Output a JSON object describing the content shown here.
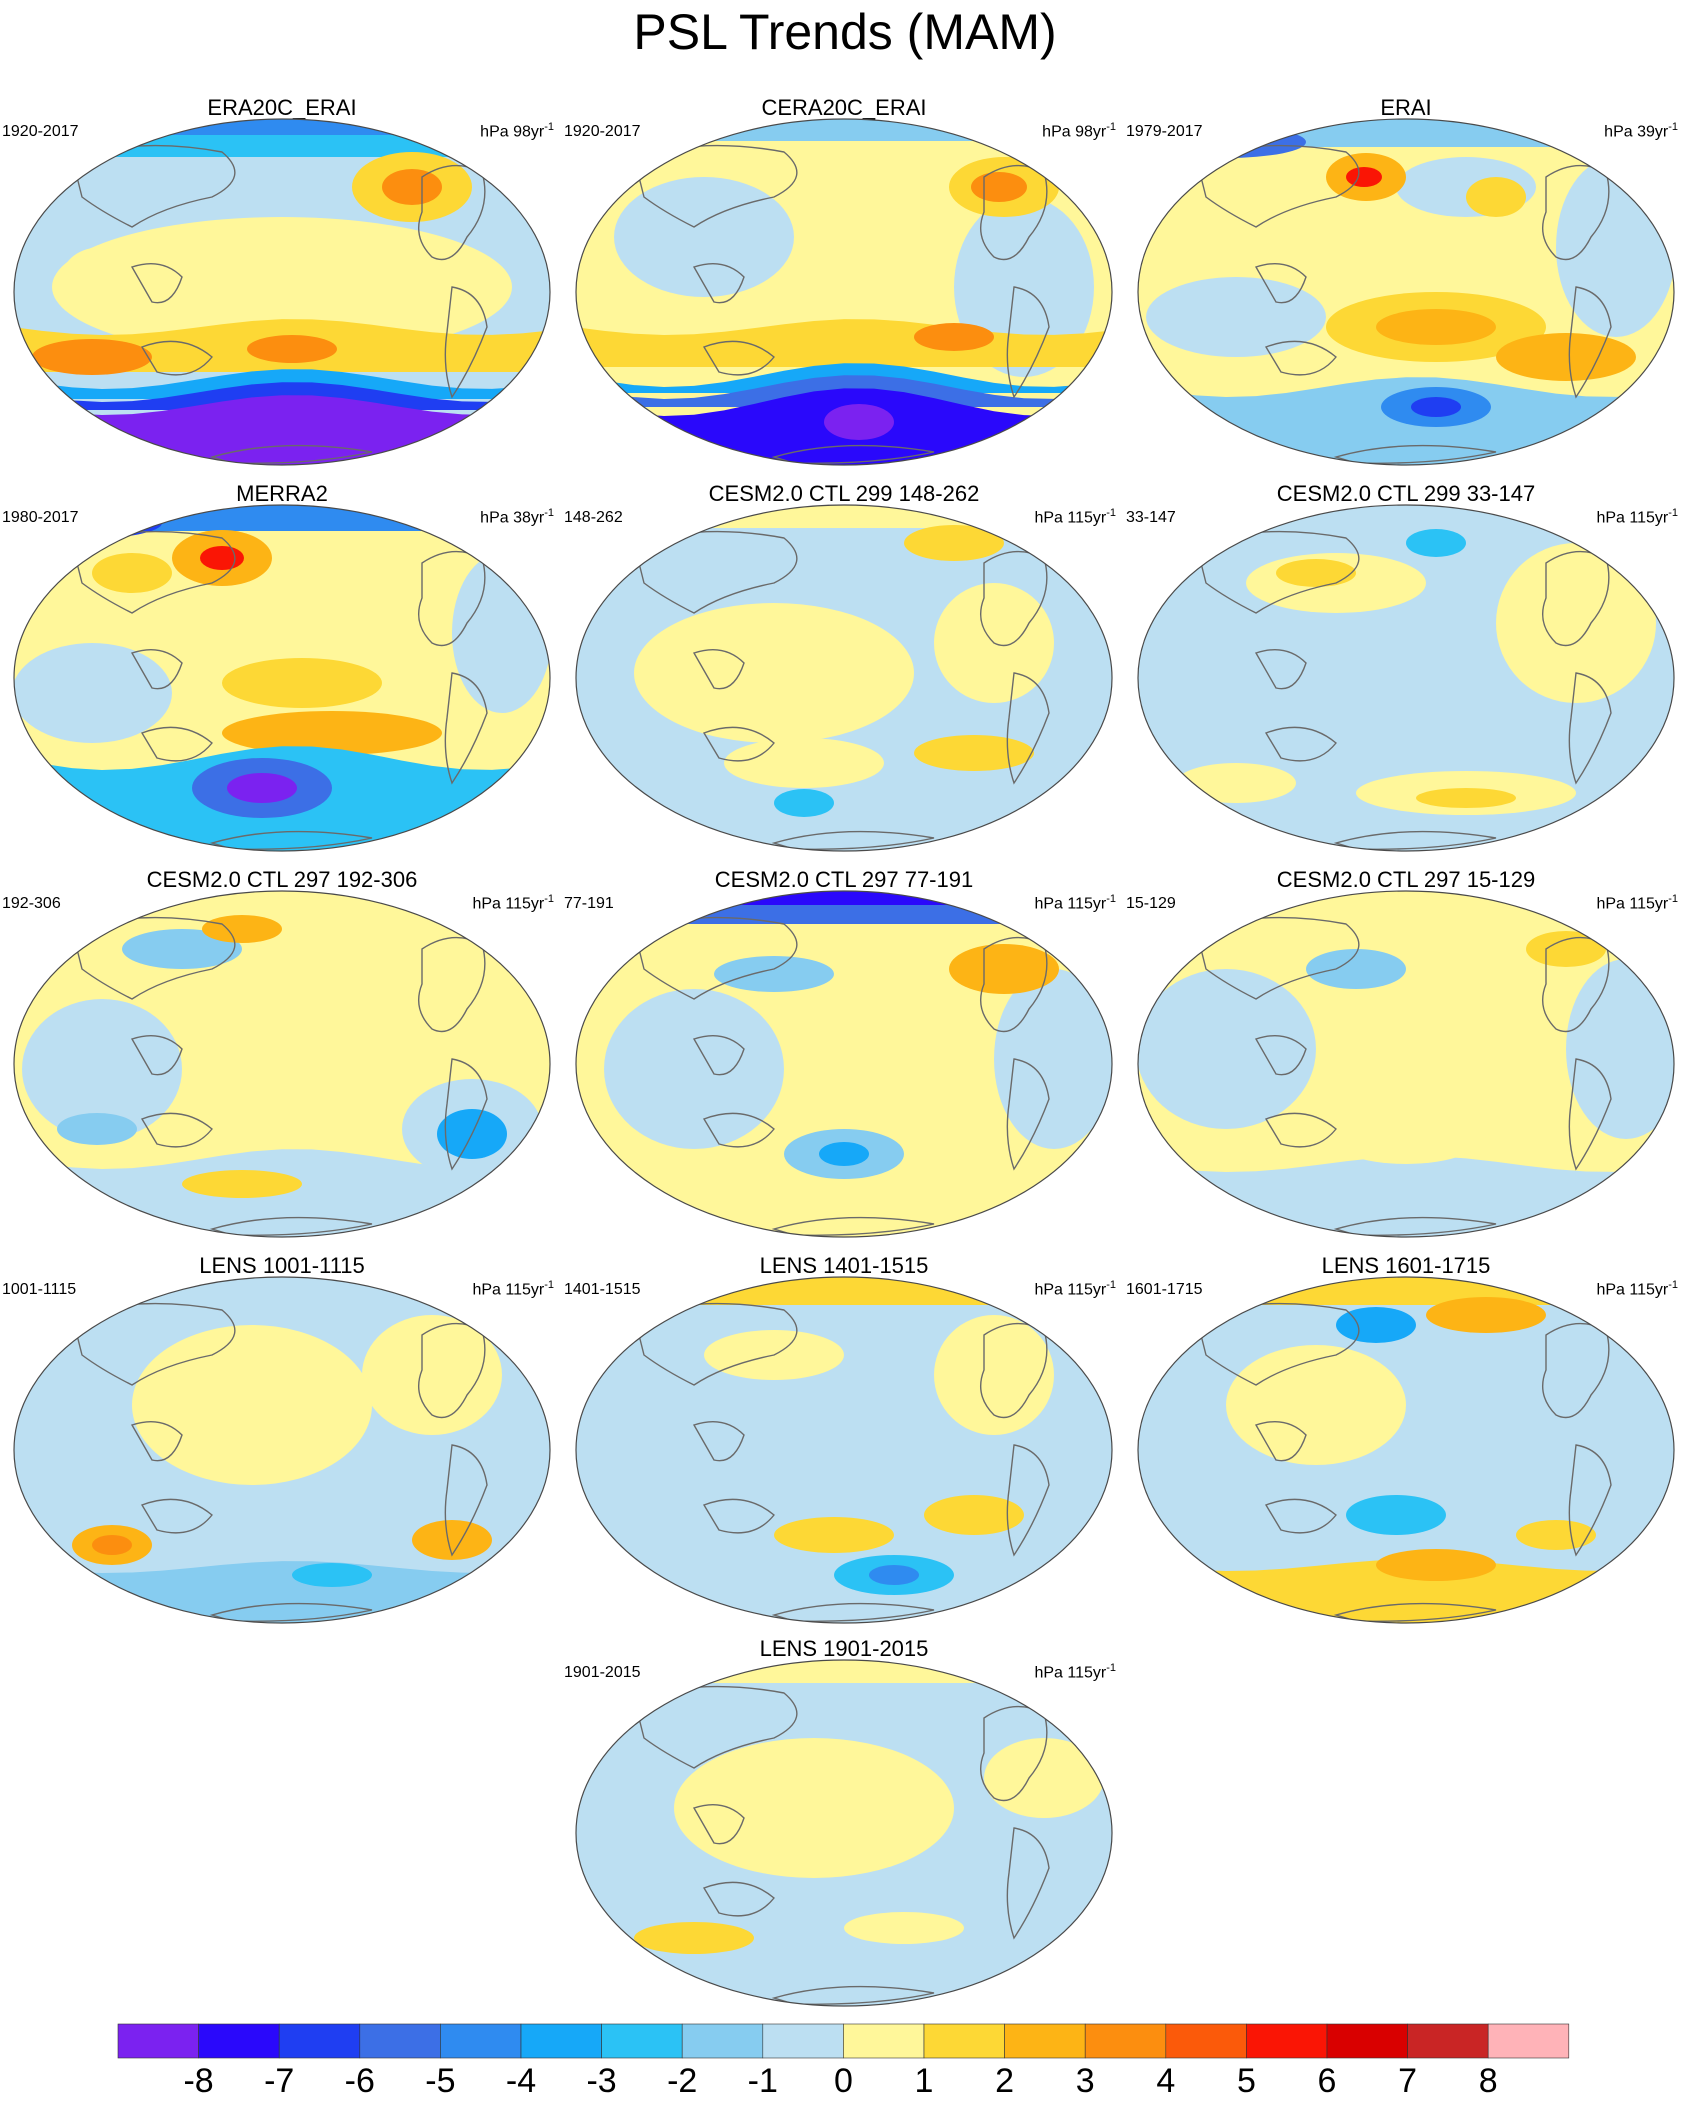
{
  "title": "PSL Trends (MAM)",
  "colors": {
    "land_outline": "#6a6a6a",
    "map_border": "#4a4a4a",
    "levels": [
      "#7b22f0",
      "#2a08fb",
      "#1f3ef2",
      "#3c6fe6",
      "#2f8bf0",
      "#16a8f8",
      "#2bc2f5",
      "#86ccf0",
      "#bcdff2",
      "#fff79a",
      "#fdd835",
      "#fdb415",
      "#fc8e0f",
      "#fb5a0a",
      "#fa1505",
      "#d90000",
      "#c92525",
      "#ffb3b8"
    ]
  },
  "panels": [
    {
      "title": "ERA20C_ERAI",
      "left_label": "1920-2017",
      "unit": "hPa 98yr",
      "unit_exp": "-1",
      "style": "southern-low"
    },
    {
      "title": "CERA20C_ERAI",
      "left_label": "1920-2017",
      "unit": "hPa 98yr",
      "unit_exp": "-1",
      "style": "southern-low-2"
    },
    {
      "title": "ERAI",
      "left_label": "1979-2017",
      "unit": "hPa 39yr",
      "unit_exp": "-1",
      "style": "erai"
    },
    {
      "title": "MERRA2",
      "left_label": "1980-2017",
      "unit": "hPa 38yr",
      "unit_exp": "-1",
      "style": "merra"
    },
    {
      "title": "CESM2.0 CTL 299 148-262",
      "left_label": "148-262",
      "unit": "hPa 115yr",
      "unit_exp": "-1",
      "style": "mild-a"
    },
    {
      "title": "CESM2.0 CTL 299 33-147",
      "left_label": "33-147",
      "unit": "hPa 115yr",
      "unit_exp": "-1",
      "style": "mild-b"
    },
    {
      "title": "CESM2.0 CTL 297 192-306",
      "left_label": "192-306",
      "unit": "hPa 115yr",
      "unit_exp": "-1",
      "style": "mild-c"
    },
    {
      "title": "CESM2.0 CTL 297 77-191",
      "left_label": "77-191",
      "unit": "hPa 115yr",
      "unit_exp": "-1",
      "style": "arctic-low"
    },
    {
      "title": "CESM2.0 CTL 297 15-129",
      "left_label": "15-129",
      "unit": "hPa 115yr",
      "unit_exp": "-1",
      "style": "mild-d"
    },
    {
      "title": "LENS 1001-1115",
      "left_label": "1001-1115",
      "unit": "hPa 115yr",
      "unit_exp": "-1",
      "style": "lens-a"
    },
    {
      "title": "LENS 1401-1515",
      "left_label": "1401-1515",
      "unit": "hPa 115yr",
      "unit_exp": "-1",
      "style": "lens-b"
    },
    {
      "title": "LENS 1601-1715",
      "left_label": "1601-1715",
      "unit": "hPa 115yr",
      "unit_exp": "-1",
      "style": "lens-c"
    },
    {
      "title": "LENS 1901-2015",
      "left_label": "1901-2015",
      "unit": "hPa 115yr",
      "unit_exp": "-1",
      "style": "lens-d"
    }
  ],
  "colorbar": {
    "labels": [
      "-8",
      "-7",
      "-6",
      "-5",
      "-4",
      "-3",
      "-2",
      "-1",
      "0",
      "1",
      "2",
      "3",
      "4",
      "5",
      "6",
      "7",
      "8"
    ]
  }
}
